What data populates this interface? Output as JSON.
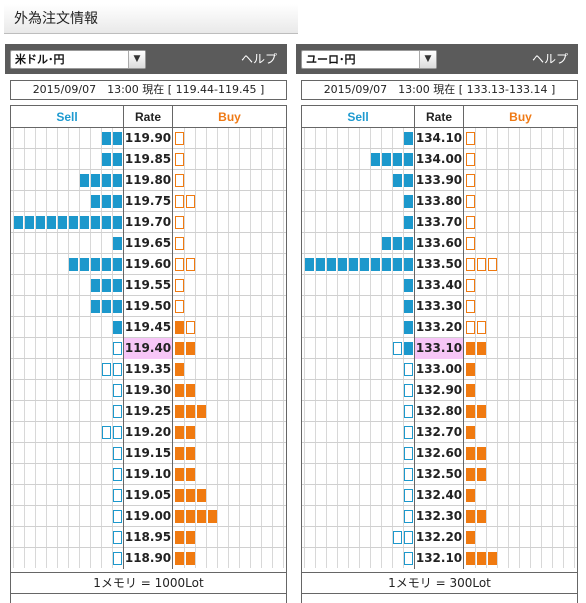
{
  "page_title": "外為注文情報",
  "colors": {
    "sell": "#1c98cc",
    "buy": "#f07a10",
    "current_rate_bg": "#f7c6f7",
    "header_bg": "#5b5b5b"
  },
  "panels": [
    {
      "pair": "米ドル･円",
      "help": "ヘルプ",
      "status": "2015/09/07　13:00 現在 [ 119.44-119.45 ]",
      "headers": {
        "sell": "Sell",
        "rate": "Rate",
        "buy": "Buy"
      },
      "footer": "1メモリ = 1000Lot",
      "rows": [
        {
          "rate": "119.90",
          "sell": 2,
          "sell_outline": 0,
          "buy": 0,
          "buy_outline": 1,
          "current": false
        },
        {
          "rate": "119.85",
          "sell": 2,
          "sell_outline": 0,
          "buy": 0,
          "buy_outline": 1,
          "current": false
        },
        {
          "rate": "119.80",
          "sell": 4,
          "sell_outline": 0,
          "buy": 0,
          "buy_outline": 1,
          "current": false
        },
        {
          "rate": "119.75",
          "sell": 3,
          "sell_outline": 0,
          "buy": 0,
          "buy_outline": 2,
          "current": false
        },
        {
          "rate": "119.70",
          "sell": 10,
          "sell_outline": 0,
          "buy": 0,
          "buy_outline": 1,
          "current": false
        },
        {
          "rate": "119.65",
          "sell": 1,
          "sell_outline": 0,
          "buy": 0,
          "buy_outline": 1,
          "current": false
        },
        {
          "rate": "119.60",
          "sell": 5,
          "sell_outline": 0,
          "buy": 0,
          "buy_outline": 2,
          "current": false
        },
        {
          "rate": "119.55",
          "sell": 3,
          "sell_outline": 0,
          "buy": 0,
          "buy_outline": 1,
          "current": false
        },
        {
          "rate": "119.50",
          "sell": 3,
          "sell_outline": 0,
          "buy": 0,
          "buy_outline": 1,
          "current": false
        },
        {
          "rate": "119.45",
          "sell": 1,
          "sell_outline": 0,
          "buy": 1,
          "buy_outline": 1,
          "current": false
        },
        {
          "rate": "119.40",
          "sell": 0,
          "sell_outline": 1,
          "buy": 2,
          "buy_outline": 0,
          "current": true
        },
        {
          "rate": "119.35",
          "sell": 0,
          "sell_outline": 2,
          "buy": 1,
          "buy_outline": 0,
          "current": false
        },
        {
          "rate": "119.30",
          "sell": 0,
          "sell_outline": 1,
          "buy": 2,
          "buy_outline": 0,
          "current": false
        },
        {
          "rate": "119.25",
          "sell": 0,
          "sell_outline": 1,
          "buy": 3,
          "buy_outline": 0,
          "current": false
        },
        {
          "rate": "119.20",
          "sell": 0,
          "sell_outline": 2,
          "buy": 2,
          "buy_outline": 0,
          "current": false
        },
        {
          "rate": "119.15",
          "sell": 0,
          "sell_outline": 1,
          "buy": 2,
          "buy_outline": 0,
          "current": false
        },
        {
          "rate": "119.10",
          "sell": 0,
          "sell_outline": 1,
          "buy": 2,
          "buy_outline": 0,
          "current": false
        },
        {
          "rate": "119.05",
          "sell": 0,
          "sell_outline": 1,
          "buy": 3,
          "buy_outline": 0,
          "current": false
        },
        {
          "rate": "119.00",
          "sell": 0,
          "sell_outline": 1,
          "buy": 4,
          "buy_outline": 0,
          "current": false
        },
        {
          "rate": "118.95",
          "sell": 0,
          "sell_outline": 1,
          "buy": 2,
          "buy_outline": 0,
          "current": false
        },
        {
          "rate": "118.90",
          "sell": 0,
          "sell_outline": 1,
          "buy": 2,
          "buy_outline": 0,
          "current": false
        }
      ]
    },
    {
      "pair": "ユーロ･円",
      "help": "ヘルプ",
      "status": "2015/09/07　13:00 現在 [ 133.13-133.14 ]",
      "headers": {
        "sell": "Sell",
        "rate": "Rate",
        "buy": "Buy"
      },
      "footer": "1メモリ = 300Lot",
      "rows": [
        {
          "rate": "134.10",
          "sell": 1,
          "sell_outline": 0,
          "buy": 0,
          "buy_outline": 1,
          "current": false
        },
        {
          "rate": "134.00",
          "sell": 4,
          "sell_outline": 0,
          "buy": 0,
          "buy_outline": 1,
          "current": false
        },
        {
          "rate": "133.90",
          "sell": 2,
          "sell_outline": 0,
          "buy": 0,
          "buy_outline": 1,
          "current": false
        },
        {
          "rate": "133.80",
          "sell": 1,
          "sell_outline": 0,
          "buy": 0,
          "buy_outline": 1,
          "current": false
        },
        {
          "rate": "133.70",
          "sell": 1,
          "sell_outline": 0,
          "buy": 0,
          "buy_outline": 1,
          "current": false
        },
        {
          "rate": "133.60",
          "sell": 3,
          "sell_outline": 0,
          "buy": 0,
          "buy_outline": 1,
          "current": false
        },
        {
          "rate": "133.50",
          "sell": 10,
          "sell_outline": 0,
          "buy": 0,
          "buy_outline": 3,
          "current": false
        },
        {
          "rate": "133.40",
          "sell": 1,
          "sell_outline": 0,
          "buy": 0,
          "buy_outline": 1,
          "current": false
        },
        {
          "rate": "133.30",
          "sell": 1,
          "sell_outline": 0,
          "buy": 0,
          "buy_outline": 1,
          "current": false
        },
        {
          "rate": "133.20",
          "sell": 1,
          "sell_outline": 0,
          "buy": 0,
          "buy_outline": 2,
          "current": false
        },
        {
          "rate": "133.10",
          "sell": 1,
          "sell_outline": 1,
          "buy": 2,
          "buy_outline": 0,
          "current": true
        },
        {
          "rate": "133.00",
          "sell": 0,
          "sell_outline": 1,
          "buy": 1,
          "buy_outline": 0,
          "current": false
        },
        {
          "rate": "132.90",
          "sell": 0,
          "sell_outline": 1,
          "buy": 1,
          "buy_outline": 0,
          "current": false
        },
        {
          "rate": "132.80",
          "sell": 0,
          "sell_outline": 1,
          "buy": 2,
          "buy_outline": 0,
          "current": false
        },
        {
          "rate": "132.70",
          "sell": 0,
          "sell_outline": 1,
          "buy": 1,
          "buy_outline": 0,
          "current": false
        },
        {
          "rate": "132.60",
          "sell": 0,
          "sell_outline": 1,
          "buy": 2,
          "buy_outline": 0,
          "current": false
        },
        {
          "rate": "132.50",
          "sell": 0,
          "sell_outline": 1,
          "buy": 2,
          "buy_outline": 0,
          "current": false
        },
        {
          "rate": "132.40",
          "sell": 0,
          "sell_outline": 1,
          "buy": 1,
          "buy_outline": 0,
          "current": false
        },
        {
          "rate": "132.30",
          "sell": 0,
          "sell_outline": 1,
          "buy": 2,
          "buy_outline": 0,
          "current": false
        },
        {
          "rate": "132.20",
          "sell": 0,
          "sell_outline": 2,
          "buy": 1,
          "buy_outline": 0,
          "current": false
        },
        {
          "rate": "132.10",
          "sell": 0,
          "sell_outline": 1,
          "buy": 3,
          "buy_outline": 0,
          "current": false
        }
      ]
    }
  ]
}
